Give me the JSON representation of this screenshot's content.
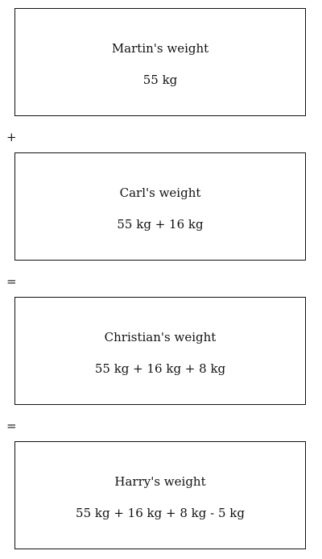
{
  "boxes": [
    {
      "title": "Martin's weight",
      "expression": "55 kg"
    },
    {
      "title": "Carl's weight",
      "expression": "55 kg + 16 kg"
    },
    {
      "title": "Christian's weight",
      "expression": "55 kg + 16 kg + 8 kg"
    },
    {
      "title": "Harry's weight",
      "expression": "55 kg + 16 kg + 8 kg - 5 kg"
    }
  ],
  "operators": [
    "+",
    "=",
    "="
  ]
}
